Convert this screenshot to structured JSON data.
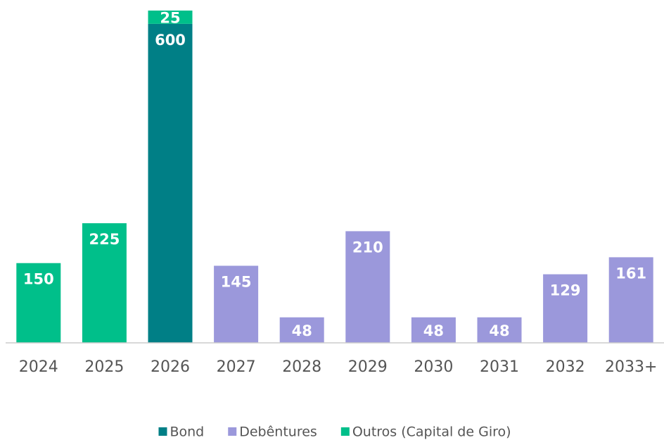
{
  "chart_data": {
    "type": "stacked_bar",
    "categories": [
      "2024",
      "2025",
      "2026",
      "2027",
      "2028",
      "2029",
      "2030",
      "2031",
      "2032",
      "2033+"
    ],
    "series": [
      {
        "name": "Bond",
        "color": "#007f86",
        "values": [
          null,
          null,
          600,
          null,
          null,
          null,
          null,
          null,
          null,
          null
        ]
      },
      {
        "name": "Debêntures",
        "color": "#9b98db",
        "values": [
          null,
          null,
          null,
          145,
          48,
          210,
          48,
          48,
          129,
          161
        ]
      },
      {
        "name": "Outros (Capital de Giro)",
        "color": "#00bf8a",
        "values": [
          150,
          225,
          25,
          null,
          null,
          null,
          null,
          null,
          null,
          null
        ]
      }
    ],
    "legend": "bottom"
  }
}
